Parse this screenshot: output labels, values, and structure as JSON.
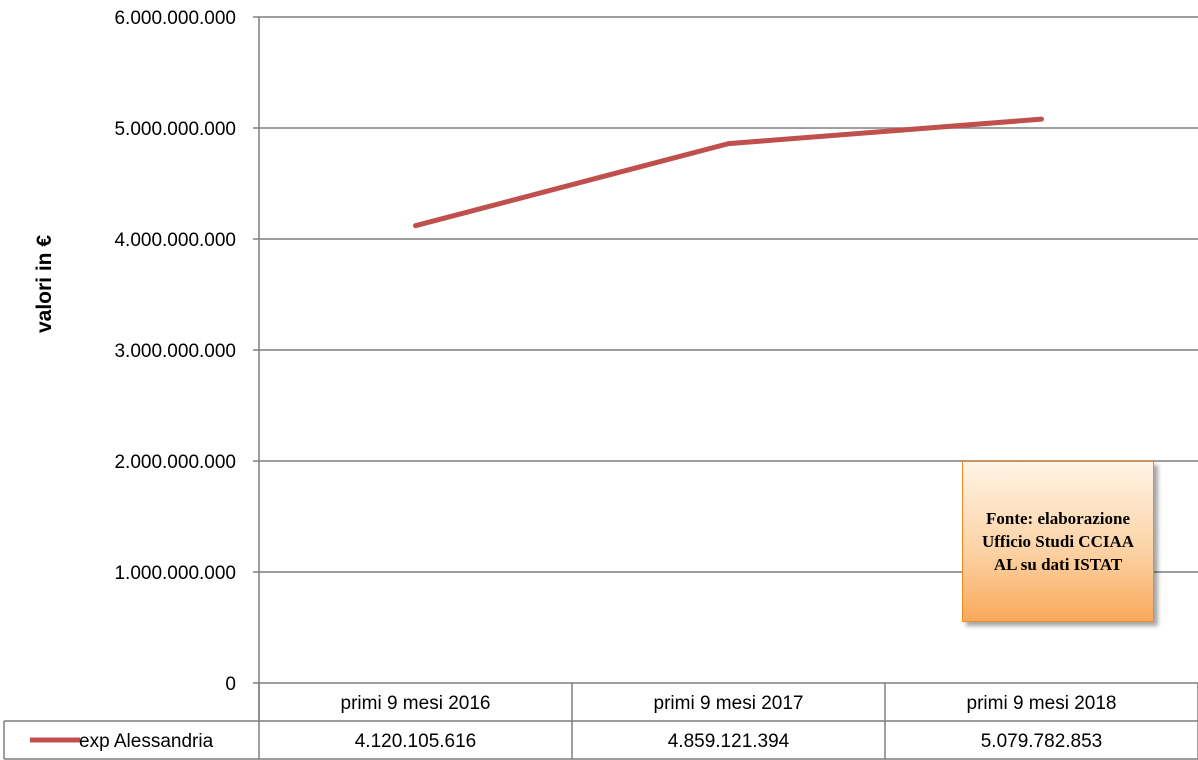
{
  "chart_data": {
    "type": "line",
    "categories": [
      "primi 9 mesi 2016",
      "primi 9 mesi 2017",
      "primi 9 mesi 2018"
    ],
    "series": [
      {
        "name": "exp Alessandria",
        "values": [
          4120105616,
          4859121394,
          5079782853
        ],
        "value_labels": [
          "4.120.105.616",
          "4.859.121.394",
          "5.079.782.853"
        ],
        "color": "#c0504d"
      }
    ],
    "ylabel": "valori in €",
    "ylim": [
      0,
      6000000000
    ],
    "yticks": [
      0,
      1000000000,
      2000000000,
      3000000000,
      4000000000,
      5000000000,
      6000000000
    ],
    "ytick_labels": [
      "0",
      "1.000.000.000",
      "2.000.000.000",
      "3.000.000.000",
      "4.000.000.000",
      "5.000.000.000",
      "6.000.000.000"
    ],
    "grid": true,
    "data_table": true,
    "gridline_color": "#7f7f7f",
    "annotation": {
      "text": "Fonte: elaborazione Ufficio Studi CCIAA AL su dati ISTAT",
      "fill_color": "#fbc08a",
      "border_color": "#f08a24"
    }
  }
}
